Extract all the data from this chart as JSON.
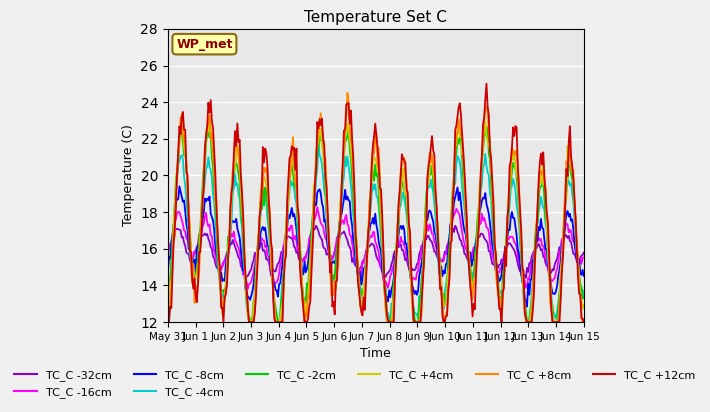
{
  "title": "Temperature Set C",
  "xlabel": "Time",
  "ylabel": "Temperature (C)",
  "ylim": [
    12,
    28
  ],
  "legend_label": "WP_met",
  "x_tick_labels": [
    "May 31",
    "Jun 1",
    "Jun 2",
    "Jun 3",
    "Jun 4",
    "Jun 5",
    "Jun 6",
    "Jun 7",
    "Jun 8",
    "Jun 9",
    "Jun 10",
    "Jun 11",
    "Jun 12",
    "Jun 13",
    "Jun 14",
    "Jun 15"
  ],
  "background_color": "#e8e8e8",
  "grid_color": "#ffffff",
  "series": [
    {
      "label": "TC_C -32cm",
      "color": "#8800cc"
    },
    {
      "label": "TC_C -16cm",
      "color": "#ff00ff"
    },
    {
      "label": "TC_C -8cm",
      "color": "#0000ff"
    },
    {
      "label": "TC_C -4cm",
      "color": "#00cccc"
    },
    {
      "label": "TC_C -2cm",
      "color": "#00cc00"
    },
    {
      "label": "TC_C +4cm",
      "color": "#cccc00"
    },
    {
      "label": "TC_C +8cm",
      "color": "#ff8800"
    },
    {
      "label": "TC_C +12cm",
      "color": "#cc0000"
    }
  ]
}
